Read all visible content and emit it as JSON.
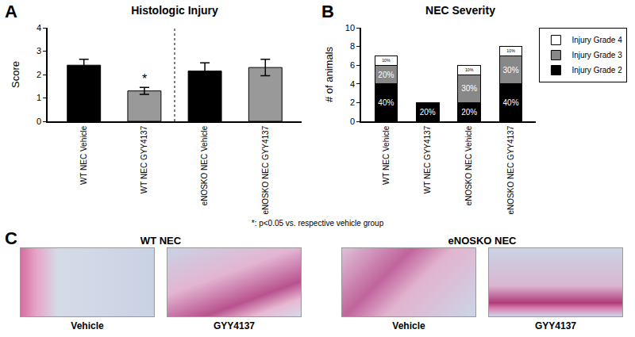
{
  "chart_data": [
    {
      "type": "bar",
      "panel_label": "A",
      "title": "Histologic Injury",
      "categories": [
        "WT NEC Vehicle",
        "WT NEC GYY4137",
        "eNOSKO NEC Vehicle",
        "eNOSKO NEC GYY4137"
      ],
      "values": [
        2.4,
        1.3,
        2.15,
        2.3
      ],
      "errors": [
        0.25,
        0.15,
        0.35,
        0.35
      ],
      "colors": [
        "#000000",
        "#999999",
        "#000000",
        "#999999"
      ],
      "y_label": "Score",
      "ylim": [
        0,
        4
      ],
      "yticks": [
        0,
        1,
        2,
        3,
        4
      ],
      "grid": false,
      "annotations": [
        {
          "category": "WT NEC GYY4137",
          "text": "*"
        }
      ]
    },
    {
      "type": "bar",
      "panel_label": "B",
      "title": "NEC Severity",
      "categories": [
        "WT NEC Vehicle",
        "WT NEC GYY4137",
        "eNOSKO NEC Vehicle",
        "eNOSKO NEC GYY4137"
      ],
      "y_label": "# of animals",
      "ylim": [
        0,
        10
      ],
      "yticks": [
        0,
        2,
        4,
        6,
        8,
        10
      ],
      "grid": false,
      "stacked": true,
      "legend": "right",
      "series": [
        {
          "name": "Injury Grade 2",
          "color": "#000000",
          "values": [
            4,
            2,
            2,
            4
          ],
          "segment_labels": [
            "40%",
            "20%",
            "20%",
            "40%"
          ]
        },
        {
          "name": "Injury Grade 3",
          "color": "#888888",
          "values": [
            2,
            0,
            3,
            3
          ],
          "segment_labels": [
            "20%",
            null,
            "30%",
            "30%"
          ]
        },
        {
          "name": "Injury Grade 4",
          "color": "#ffffff",
          "values": [
            1,
            0,
            1,
            1
          ],
          "segment_labels": [
            "10%",
            null,
            "10%",
            "10%"
          ]
        }
      ]
    }
  ],
  "footnote": "*: p<0.05 vs. respective vehicle group",
  "panel_c": {
    "label": "C",
    "groups": [
      {
        "title": "WT NEC",
        "images": [
          "Vehicle",
          "GYY4137"
        ]
      },
      {
        "title": "eNOSKO NEC",
        "images": [
          "Vehicle",
          "GYY4137"
        ]
      }
    ]
  }
}
